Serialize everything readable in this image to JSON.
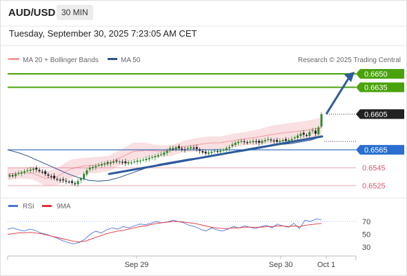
{
  "header": {
    "symbol": "AUD/USD",
    "interval": "30 MIN",
    "datetime": "Tuesday, September 30, 2025 7:23:05 AM CET"
  },
  "colors": {
    "resistance": "#4aa20b",
    "support": "#3d6fc4",
    "pivot_tag": "#222222",
    "support_tag": "#2a6fcf",
    "weak_level": "#e0546b",
    "arrow": "#2d5b9e",
    "bullish_candle": "#2f8a2f",
    "bearish_candle": "#222222",
    "ma50": "#2c4f8a",
    "bollinger_fill": "#f7d5d8",
    "rsi": "#4f6fd6",
    "rsi_ma": "#e0303b"
  },
  "legend": {
    "ma20_label": "MA 20 + Bollinger Bands",
    "ma50_label": "MA 50",
    "credit": "Research © 2025 Trading Central"
  },
  "rsi_legend": {
    "rsi_label": "RSI",
    "ma_label": "9MA"
  },
  "chart_data": {
    "type": "candlestick",
    "price_axis": {
      "min": 0.6515,
      "max": 0.666
    },
    "levels": [
      {
        "label": "0.6650",
        "value": 0.665,
        "kind": "resistance",
        "tag": "filled-green"
      },
      {
        "label": "0.6635",
        "value": 0.6635,
        "kind": "resistance",
        "tag": "filled-green"
      },
      {
        "label": "0.6605",
        "value": 0.6605,
        "kind": "pivot",
        "tag": "filled-dark"
      },
      {
        "label": "0.6565",
        "value": 0.6565,
        "kind": "support",
        "tag": "filled-blue"
      },
      {
        "label": "0.6545",
        "value": 0.6545,
        "kind": "support",
        "tag": "text-red"
      },
      {
        "label": "0.6525",
        "value": 0.6525,
        "kind": "support",
        "tag": "text-red"
      }
    ],
    "closes": [
      0.6537,
      0.6536,
      0.6538,
      0.6539,
      0.654,
      0.6541,
      0.6542,
      0.6543,
      0.6544,
      0.6543,
      0.6541,
      0.654,
      0.6538,
      0.6536,
      0.6535,
      0.6533,
      0.6532,
      0.6531,
      0.6531,
      0.653,
      0.6529,
      0.6528,
      0.6527,
      0.653,
      0.6533,
      0.6538,
      0.6542,
      0.6545,
      0.6546,
      0.6547,
      0.6548,
      0.6549,
      0.655,
      0.655,
      0.6551,
      0.6552,
      0.6552,
      0.6552,
      0.6551,
      0.655,
      0.6551,
      0.6551,
      0.6552,
      0.6553,
      0.6553,
      0.6554,
      0.6555,
      0.6556,
      0.6557,
      0.6558,
      0.6559,
      0.656,
      0.6562,
      0.6564,
      0.6567,
      0.6566,
      0.6568,
      0.6567,
      0.6566,
      0.6565,
      0.6567,
      0.6568,
      0.6567,
      0.6566,
      0.6564,
      0.6562,
      0.6561,
      0.6562,
      0.6563,
      0.6564,
      0.6563,
      0.6564,
      0.6565,
      0.6567,
      0.6568,
      0.6571,
      0.6573,
      0.6574,
      0.6575,
      0.6574,
      0.6573,
      0.6574,
      0.6575,
      0.6574,
      0.6573,
      0.6575,
      0.6576,
      0.6577,
      0.6576,
      0.6575,
      0.6574,
      0.6575,
      0.6576,
      0.6575,
      0.6576,
      0.6577,
      0.6579,
      0.6581,
      0.6583,
      0.6582,
      0.6581,
      0.6585,
      0.6587,
      0.6583,
      0.659,
      0.6605
    ],
    "ma50": [
      0.6565,
      0.6562,
      0.6558,
      0.6553,
      0.6548,
      0.6543,
      0.6538,
      0.6534,
      0.6531,
      0.653,
      0.6531,
      0.6534,
      0.6538,
      0.6542,
      0.6546,
      0.6549,
      0.6551,
      0.6553,
      0.6555,
      0.6556,
      0.6558,
      0.656,
      0.6562,
      0.6563,
      0.6565,
      0.6567,
      0.6569,
      0.6571,
      0.6572,
      0.6574,
      0.6576,
      0.658
    ],
    "bollinger_upper": [
      0.6545,
      0.6545,
      0.6546,
      0.6541,
      0.6545,
      0.6554,
      0.6556,
      0.6557,
      0.6558,
      0.6565,
      0.6573,
      0.6573,
      0.657,
      0.657,
      0.6575,
      0.6578,
      0.658,
      0.658,
      0.6583,
      0.6585,
      0.6588,
      0.6592,
      0.6594,
      0.6596,
      0.6598,
      0.6601
    ],
    "bollinger_lower": [
      0.6531,
      0.6533,
      0.6532,
      0.6525,
      0.6526,
      0.6533,
      0.6538,
      0.6539,
      0.6541,
      0.6548,
      0.6553,
      0.6556,
      0.6557,
      0.6558,
      0.6562,
      0.6563,
      0.6565,
      0.6566,
      0.6568,
      0.657,
      0.6571,
      0.6572,
      0.6574,
      0.6575,
      0.6577,
      0.6579
    ],
    "trendline": {
      "from": 0.6538,
      "to": 0.658
    },
    "projection": {
      "from": 0.6605,
      "to": 0.665
    },
    "rsi_axis": {
      "min": 15,
      "max": 85,
      "ticks": [
        "70",
        "50",
        "30"
      ]
    },
    "rsi": [
      58,
      60,
      57,
      55,
      58,
      56,
      52,
      50,
      47,
      44,
      40,
      37,
      35,
      37,
      42,
      50,
      55,
      52,
      57,
      60,
      58,
      62,
      60,
      63,
      66,
      65,
      67,
      70,
      68,
      69,
      72,
      70,
      68,
      64,
      62,
      58,
      55,
      60,
      57,
      55,
      58,
      62,
      60,
      63,
      61,
      59,
      62,
      64,
      60,
      66,
      63,
      61,
      67,
      59,
      72,
      70,
      74,
      73
    ],
    "rsi_ma": [
      50,
      51,
      52,
      52,
      53,
      52,
      51,
      49,
      47,
      45,
      43,
      41,
      39,
      38,
      39,
      42,
      45,
      48,
      51,
      53,
      55,
      56,
      58,
      60,
      62,
      63,
      65,
      67,
      68,
      69,
      70,
      70,
      69,
      68,
      67,
      65,
      63,
      61,
      60,
      59,
      59,
      60,
      60,
      61,
      61,
      61,
      61,
      62,
      62,
      63,
      63,
      62,
      63,
      62,
      64,
      65,
      66,
      67
    ],
    "x_ticks": [
      "Sep 29",
      "Sep 30",
      "Oct 1"
    ]
  }
}
